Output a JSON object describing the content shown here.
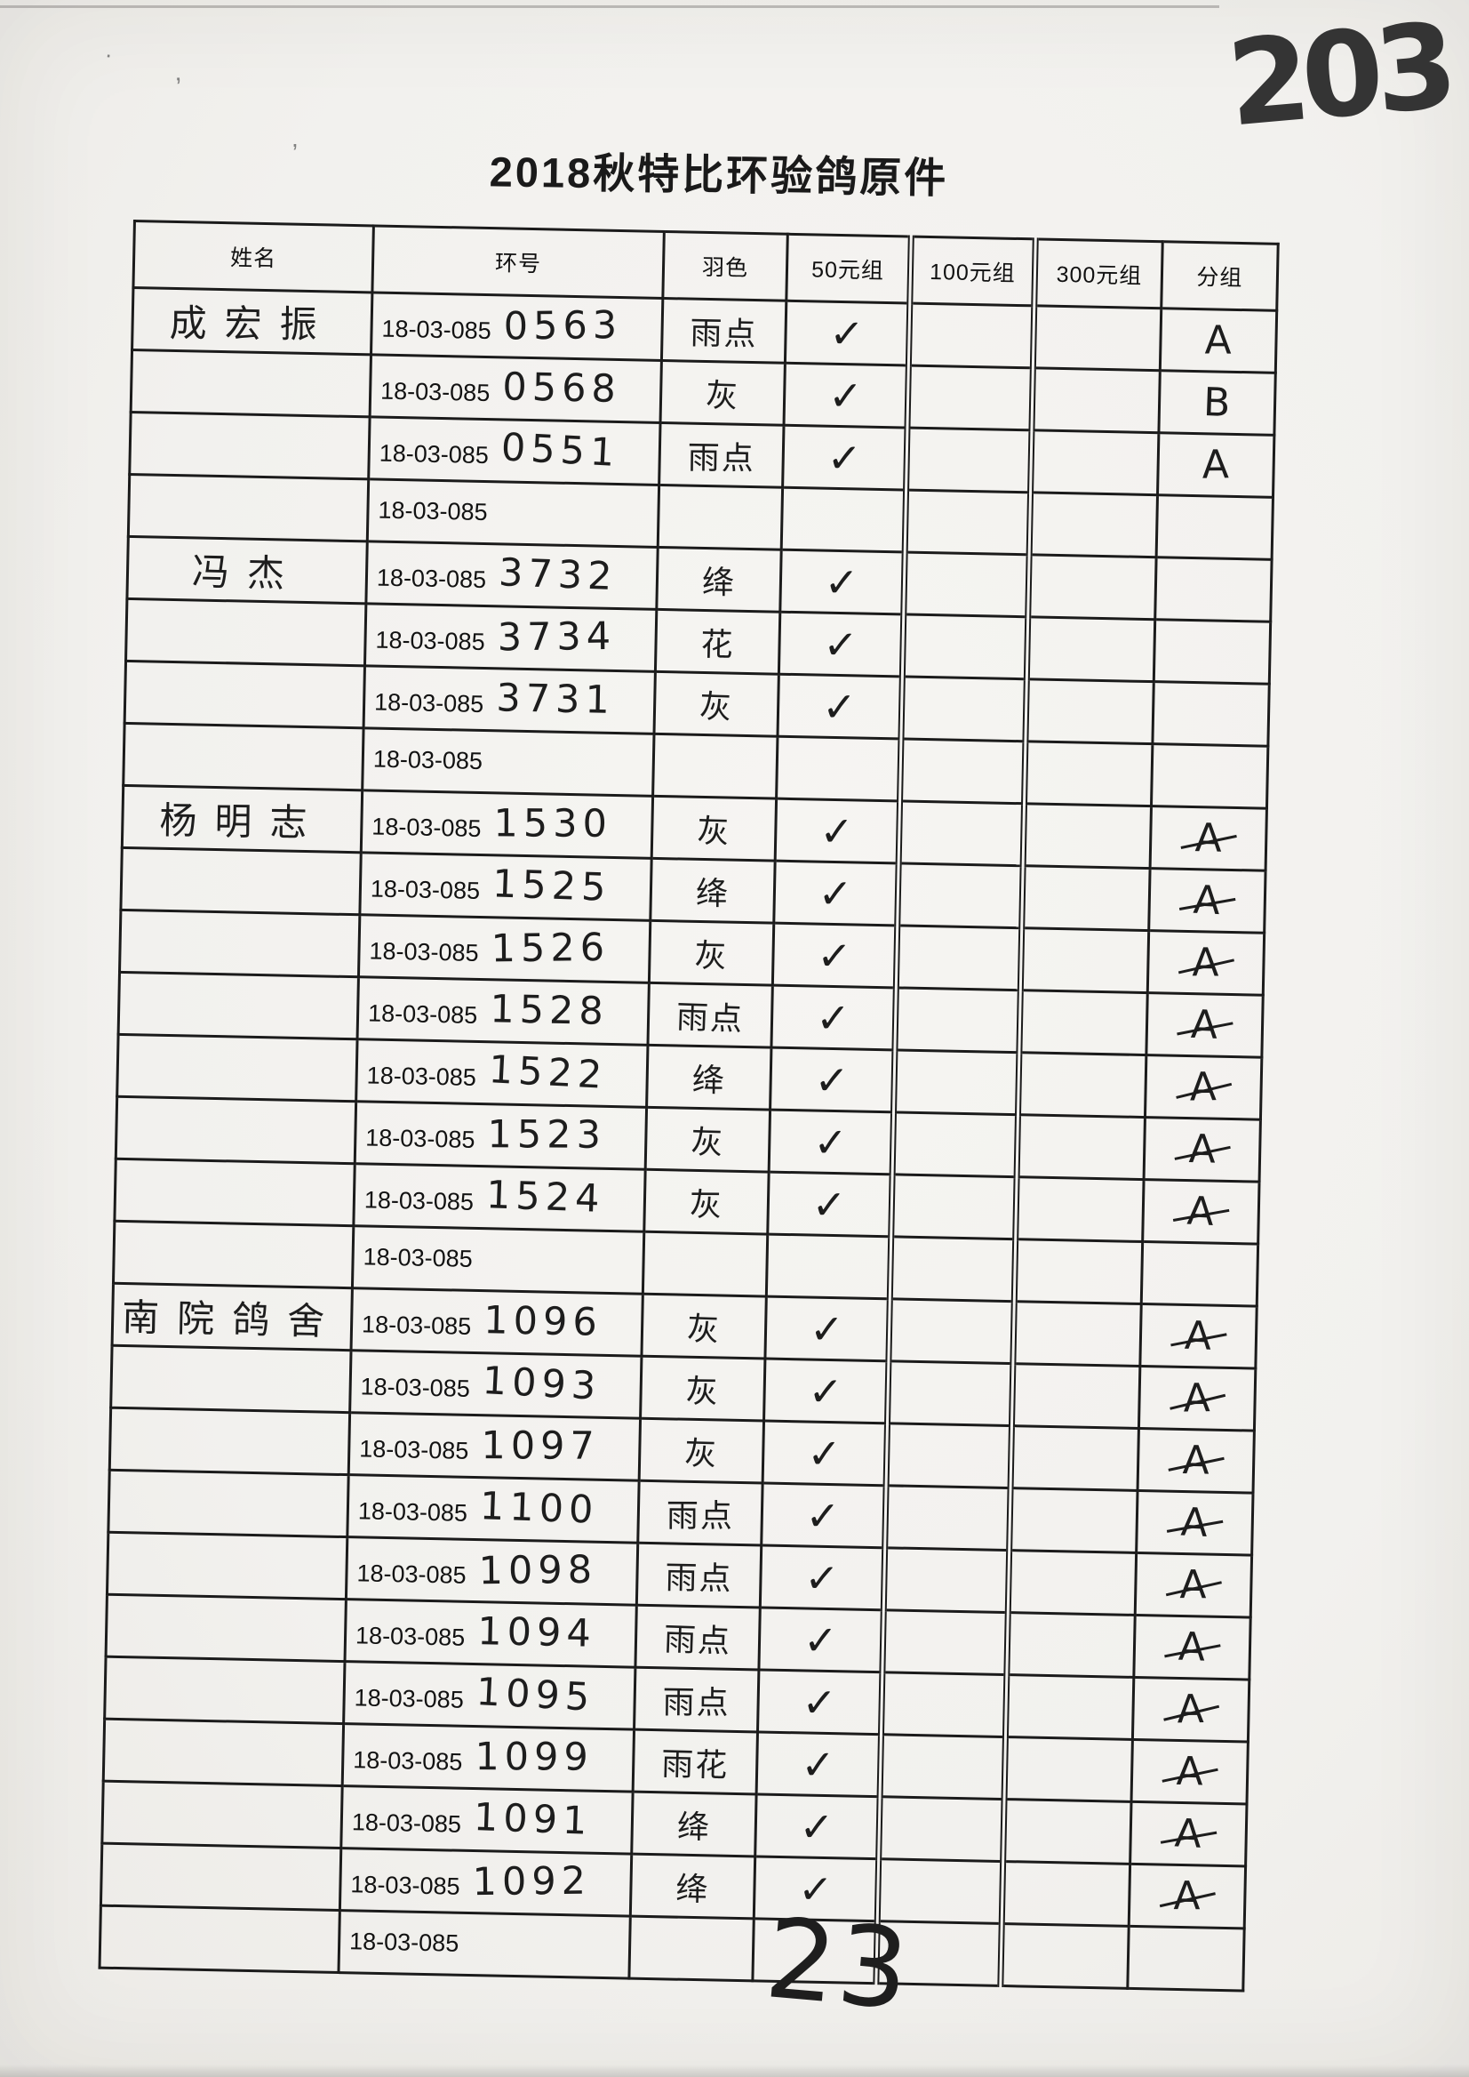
{
  "page": {
    "title": "2018秋特比环验鸽原件",
    "corner_number": "203",
    "bottom_number": "23"
  },
  "artifacts": {
    "stray_marks": [
      "·",
      "’",
      ","
    ]
  },
  "table": {
    "headers": [
      "姓名",
      "环号",
      "羽色",
      "50元组",
      "100元组",
      "300元组",
      "分组"
    ],
    "ring_prefix": "18-03-085",
    "check_symbol": "✓",
    "rows": [
      {
        "name": "成宏振",
        "number": "0563",
        "color": "雨点",
        "check_50": true,
        "check_100": false,
        "check_300": false,
        "group": "A"
      },
      {
        "name": "",
        "number": "0568",
        "color": "灰",
        "check_50": true,
        "check_100": false,
        "check_300": false,
        "group": "B"
      },
      {
        "name": "",
        "number": "0551",
        "color": "雨点",
        "check_50": true,
        "check_100": false,
        "check_300": false,
        "group": "A"
      },
      {
        "name": "",
        "number": "",
        "color": "",
        "check_50": false,
        "check_100": false,
        "check_300": false,
        "group": ""
      },
      {
        "name": "冯杰",
        "number": "3732",
        "color": "绛",
        "check_50": true,
        "check_100": false,
        "check_300": false,
        "group": ""
      },
      {
        "name": "",
        "number": "3734",
        "color": "花",
        "check_50": true,
        "check_100": false,
        "check_300": false,
        "group": ""
      },
      {
        "name": "",
        "number": "3731",
        "color": "灰",
        "check_50": true,
        "check_100": false,
        "check_300": false,
        "group": ""
      },
      {
        "name": "",
        "number": "",
        "color": "",
        "check_50": false,
        "check_100": false,
        "check_300": false,
        "group": ""
      },
      {
        "name": "杨明志",
        "number": "1530",
        "color": "灰",
        "check_50": true,
        "check_100": false,
        "check_300": false,
        "group": "A"
      },
      {
        "name": "",
        "number": "1525",
        "color": "绛",
        "check_50": true,
        "check_100": false,
        "check_300": false,
        "group": "A"
      },
      {
        "name": "",
        "number": "1526",
        "color": "灰",
        "check_50": true,
        "check_100": false,
        "check_300": false,
        "group": "A"
      },
      {
        "name": "",
        "number": "1528",
        "color": "雨点",
        "check_50": true,
        "check_100": false,
        "check_300": false,
        "group": "A"
      },
      {
        "name": "",
        "number": "1522",
        "color": "绛",
        "check_50": true,
        "check_100": false,
        "check_300": false,
        "group": "A"
      },
      {
        "name": "",
        "number": "1523",
        "color": "灰",
        "check_50": true,
        "check_100": false,
        "check_300": false,
        "group": "A"
      },
      {
        "name": "",
        "number": "1524",
        "color": "灰",
        "check_50": true,
        "check_100": false,
        "check_300": false,
        "group": "A"
      },
      {
        "name": "",
        "number": "",
        "color": "",
        "check_50": false,
        "check_100": false,
        "check_300": false,
        "group": ""
      },
      {
        "name": "南院鸽舍",
        "number": "1096",
        "color": "灰",
        "check_50": true,
        "check_100": false,
        "check_300": false,
        "group": "A"
      },
      {
        "name": "",
        "number": "1093",
        "color": "灰",
        "check_50": true,
        "check_100": false,
        "check_300": false,
        "group": "A"
      },
      {
        "name": "",
        "number": "1097",
        "color": "灰",
        "check_50": true,
        "check_100": false,
        "check_300": false,
        "group": "A"
      },
      {
        "name": "",
        "number": "1100",
        "color": "雨点",
        "check_50": true,
        "check_100": false,
        "check_300": false,
        "group": "A"
      },
      {
        "name": "",
        "number": "1098",
        "color": "雨点",
        "check_50": true,
        "check_100": false,
        "check_300": false,
        "group": "A"
      },
      {
        "name": "",
        "number": "1094",
        "color": "雨点",
        "check_50": true,
        "check_100": false,
        "check_300": false,
        "group": "A"
      },
      {
        "name": "",
        "number": "1095",
        "color": "雨点",
        "check_50": true,
        "check_100": false,
        "check_300": false,
        "group": "A"
      },
      {
        "name": "",
        "number": "1099",
        "color": "雨花",
        "check_50": true,
        "check_100": false,
        "check_300": false,
        "group": "A"
      },
      {
        "name": "",
        "number": "1091",
        "color": "绛",
        "check_50": true,
        "check_100": false,
        "check_300": false,
        "group": "A"
      },
      {
        "name": "",
        "number": "1092",
        "color": "绛",
        "check_50": true,
        "check_100": false,
        "check_300": false,
        "group": "A"
      },
      {
        "name": "",
        "number": "",
        "color": "",
        "check_50": false,
        "check_100": false,
        "check_300": false,
        "group": ""
      }
    ]
  }
}
